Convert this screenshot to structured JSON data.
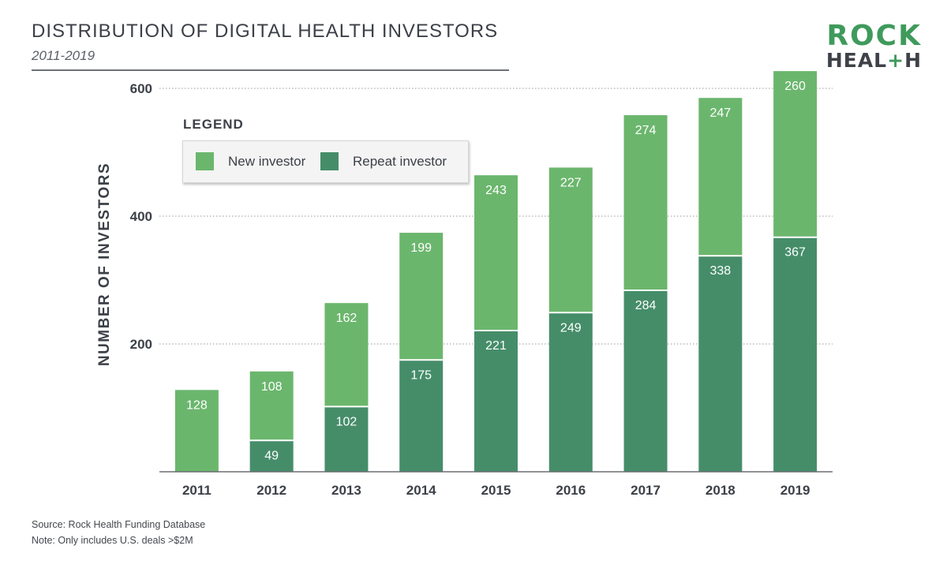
{
  "header": {
    "title": "DISTRIBUTION OF DIGITAL HEALTH INVESTORS",
    "subtitle": "2011-2019"
  },
  "logo": {
    "line1": "ROCK",
    "line2_a": "HEAL",
    "line2_plus": "+",
    "line2_b": "H"
  },
  "legend": {
    "title": "LEGEND",
    "items": [
      {
        "label": "New investor",
        "color": "#6bb66d"
      },
      {
        "label": "Repeat investor",
        "color": "#458d69"
      }
    ]
  },
  "footer": {
    "source": "Source: Rock Health Funding Database",
    "note": "Note: Only includes U.S. deals >$2M"
  },
  "chart_data": {
    "type": "bar",
    "stacked": true,
    "categories": [
      "2011",
      "2012",
      "2013",
      "2014",
      "2015",
      "2016",
      "2017",
      "2018",
      "2019"
    ],
    "series": [
      {
        "name": "Repeat investor",
        "color": "#458d69",
        "values": [
          0,
          49,
          102,
          175,
          221,
          249,
          284,
          338,
          367
        ]
      },
      {
        "name": "New investor",
        "color": "#6bb66d",
        "values": [
          128,
          108,
          162,
          199,
          243,
          227,
          274,
          247,
          260
        ]
      }
    ],
    "ylabel": "NUMBER OF INVESTORS",
    "ylim": [
      0,
      600
    ],
    "yticks": [
      200,
      400,
      600
    ],
    "grid": true
  }
}
